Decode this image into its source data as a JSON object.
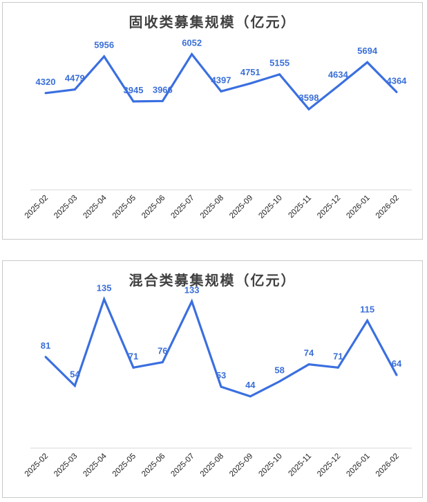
{
  "chart_data": [
    {
      "type": "line",
      "title": "固收类募集规模（亿元）",
      "categories": [
        "2025-02",
        "2025-03",
        "2025-04",
        "2025-05",
        "2025-06",
        "2025-07",
        "2025-08",
        "2025-09",
        "2025-10",
        "2025-11",
        "2025-12",
        "2026-01",
        "2026-02"
      ],
      "values": [
        4320,
        4479,
        5956,
        3945,
        3966,
        6052,
        4397,
        4751,
        5155,
        3598,
        4634,
        5694,
        4364
      ],
      "ylim": [
        0,
        6500
      ],
      "grid": false,
      "line_color": "#3a6fe0"
    },
    {
      "type": "line",
      "title": "混合类募集规模（亿元）",
      "categories": [
        "2025-02",
        "2025-03",
        "2025-04",
        "2025-05",
        "2025-06",
        "2025-07",
        "2025-08",
        "2025-09",
        "2025-10",
        "2025-11",
        "2025-12",
        "2026-01",
        "2026-02"
      ],
      "values": [
        81,
        54,
        135,
        71,
        76,
        133,
        53,
        44,
        58,
        74,
        71,
        115,
        64
      ],
      "ylim": [
        0,
        145
      ],
      "grid": false,
      "line_color": "#3a6fe0"
    }
  ]
}
